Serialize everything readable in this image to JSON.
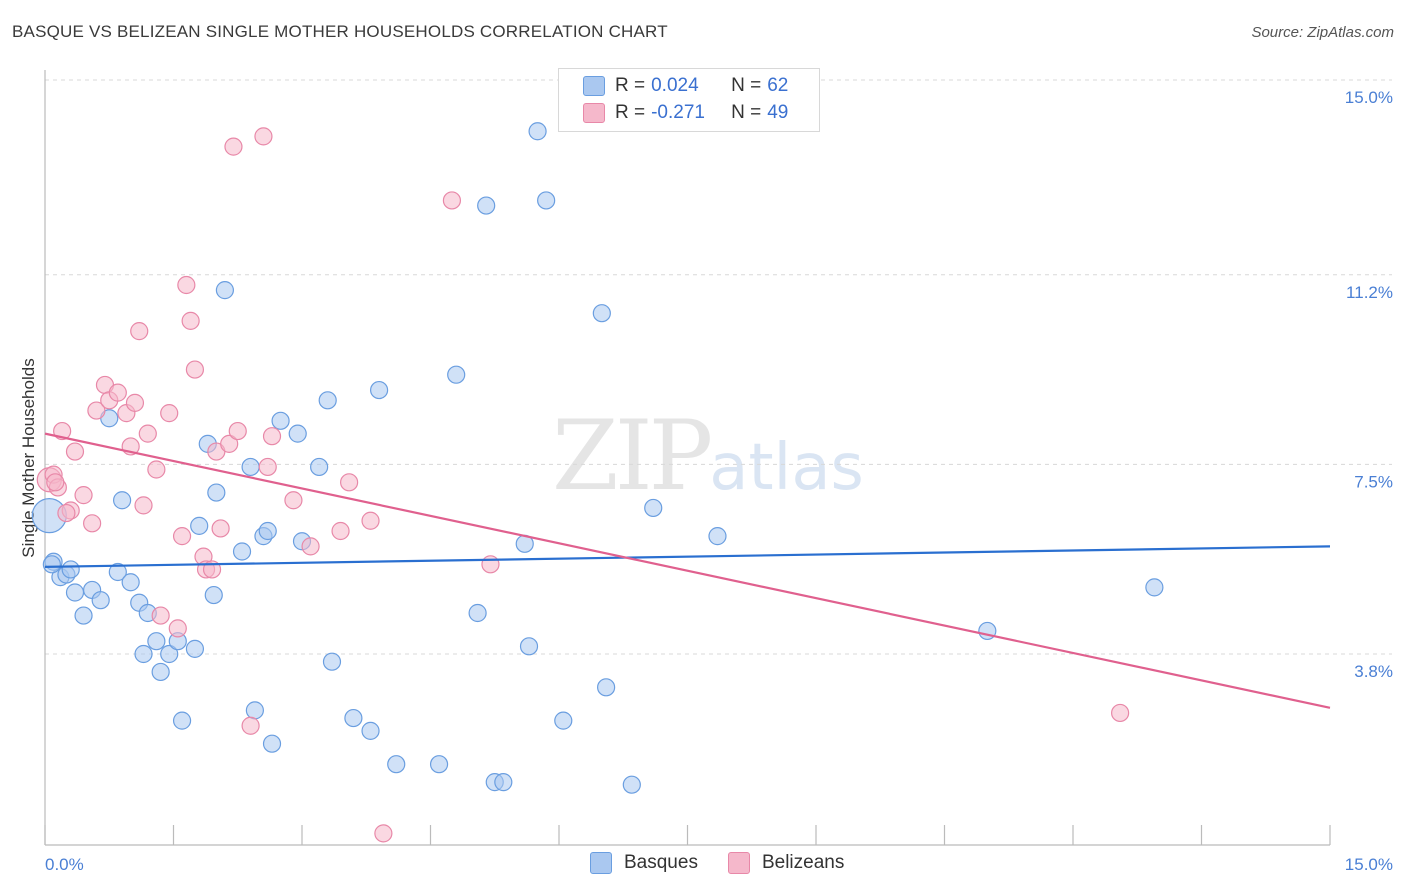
{
  "title": "BASQUE VS BELIZEAN SINGLE MOTHER HOUSEHOLDS CORRELATION CHART",
  "source": "Source: ZipAtlas.com",
  "watermark": {
    "zip": "ZIP",
    "atlas": "atlas"
  },
  "legend": {
    "rows": [
      {
        "r_label": "R =",
        "r_value": "0.024",
        "n_label": "N =",
        "n_value": "62"
      },
      {
        "r_label": "R =",
        "r_value": "-0.271",
        "n_label": "N =",
        "n_value": "49"
      }
    ]
  },
  "bottom_legend": {
    "series1": "Basques",
    "series2": "Belizeans"
  },
  "colors": {
    "basques_fill": "#aac8f0",
    "basques_stroke": "#6a9ee0",
    "basques_line": "#2a6fd0",
    "belizeans_fill": "#f5b8cb",
    "belizeans_stroke": "#e888a8",
    "belizeans_line": "#e0608e",
    "tick_text": "#4a7fd4",
    "grid": "#d8d8d8"
  },
  "chart_data": {
    "type": "scatter",
    "title": "BASQUE VS BELIZEAN SINGLE MOTHER HOUSEHOLDS CORRELATION CHART",
    "xlabel": "",
    "ylabel": "Single Mother Households",
    "xlim": [
      0,
      15
    ],
    "ylim": [
      0,
      15.5
    ],
    "x_tick_labels": [
      "0.0%",
      "15.0%"
    ],
    "y_ticks": [
      3.8,
      7.5,
      11.2,
      15.0
    ],
    "y_tick_labels": [
      "3.8%",
      "7.5%",
      "11.2%",
      "15.0%"
    ],
    "grid": true,
    "legend_position": "top-center",
    "series": [
      {
        "name": "Basques",
        "r": 0.024,
        "n": 62,
        "trend": [
          [
            0,
            5.5
          ],
          [
            15,
            5.9
          ]
        ],
        "points": [
          [
            0.05,
            6.5
          ],
          [
            0.1,
            5.6
          ],
          [
            0.18,
            5.3
          ],
          [
            0.25,
            5.35
          ],
          [
            0.35,
            5.0
          ],
          [
            0.45,
            4.55
          ],
          [
            0.55,
            5.05
          ],
          [
            0.65,
            4.85
          ],
          [
            0.75,
            8.4
          ],
          [
            0.85,
            5.4
          ],
          [
            0.9,
            6.8
          ],
          [
            1.0,
            5.2
          ],
          [
            1.1,
            4.8
          ],
          [
            1.15,
            3.8
          ],
          [
            1.2,
            4.6
          ],
          [
            1.3,
            4.05
          ],
          [
            1.35,
            3.45
          ],
          [
            1.45,
            3.8
          ],
          [
            1.55,
            4.05
          ],
          [
            1.6,
            2.5
          ],
          [
            1.75,
            3.9
          ],
          [
            1.8,
            6.3
          ],
          [
            1.9,
            7.9
          ],
          [
            1.97,
            4.95
          ],
          [
            2.0,
            6.95
          ],
          [
            2.1,
            10.9
          ],
          [
            2.3,
            5.8
          ],
          [
            2.4,
            7.45
          ],
          [
            2.45,
            2.7
          ],
          [
            2.55,
            6.1
          ],
          [
            2.6,
            6.2
          ],
          [
            2.65,
            2.05
          ],
          [
            2.75,
            8.35
          ],
          [
            2.95,
            8.1
          ],
          [
            3.0,
            6.0
          ],
          [
            3.2,
            7.45
          ],
          [
            3.3,
            8.75
          ],
          [
            3.35,
            3.65
          ],
          [
            3.6,
            2.55
          ],
          [
            3.8,
            2.3
          ],
          [
            3.9,
            8.95
          ],
          [
            4.1,
            1.65
          ],
          [
            4.6,
            1.65
          ],
          [
            4.8,
            9.25
          ],
          [
            5.05,
            4.6
          ],
          [
            5.15,
            12.55
          ],
          [
            5.25,
            1.3
          ],
          [
            5.35,
            1.3
          ],
          [
            5.6,
            5.95
          ],
          [
            5.65,
            3.95
          ],
          [
            5.75,
            14.0
          ],
          [
            5.85,
            12.65
          ],
          [
            6.05,
            2.5
          ],
          [
            6.5,
            10.45
          ],
          [
            6.55,
            3.15
          ],
          [
            6.85,
            1.25
          ],
          [
            7.1,
            6.65
          ],
          [
            7.85,
            6.1
          ],
          [
            11.0,
            4.25
          ],
          [
            12.95,
            5.1
          ],
          [
            0.08,
            5.55
          ],
          [
            0.3,
            5.45
          ]
        ]
      },
      {
        "name": "Belizeans",
        "r": -0.271,
        "n": 49,
        "trend": [
          [
            0,
            8.1
          ],
          [
            15,
            2.75
          ]
        ],
        "points": [
          [
            0.05,
            7.2
          ],
          [
            0.1,
            7.3
          ],
          [
            0.15,
            7.05
          ],
          [
            0.2,
            8.15
          ],
          [
            0.3,
            6.6
          ],
          [
            0.35,
            7.75
          ],
          [
            0.45,
            6.9
          ],
          [
            0.55,
            6.35
          ],
          [
            0.6,
            8.55
          ],
          [
            0.7,
            9.05
          ],
          [
            0.75,
            8.75
          ],
          [
            0.85,
            8.9
          ],
          [
            0.95,
            8.5
          ],
          [
            1.0,
            7.85
          ],
          [
            1.05,
            8.7
          ],
          [
            1.1,
            10.1
          ],
          [
            1.15,
            6.7
          ],
          [
            1.2,
            8.1
          ],
          [
            1.3,
            7.4
          ],
          [
            1.35,
            4.55
          ],
          [
            1.45,
            8.5
          ],
          [
            1.55,
            4.3
          ],
          [
            1.6,
            6.1
          ],
          [
            1.65,
            11.0
          ],
          [
            1.7,
            10.3
          ],
          [
            1.75,
            9.35
          ],
          [
            1.85,
            5.7
          ],
          [
            1.88,
            5.45
          ],
          [
            1.95,
            5.45
          ],
          [
            2.0,
            7.75
          ],
          [
            2.05,
            6.25
          ],
          [
            2.15,
            7.9
          ],
          [
            2.2,
            13.7
          ],
          [
            2.25,
            8.15
          ],
          [
            2.4,
            2.4
          ],
          [
            2.55,
            13.9
          ],
          [
            2.6,
            7.45
          ],
          [
            2.65,
            8.05
          ],
          [
            2.9,
            6.8
          ],
          [
            3.1,
            5.9
          ],
          [
            3.45,
            6.2
          ],
          [
            3.55,
            7.15
          ],
          [
            3.8,
            6.4
          ],
          [
            3.95,
            0.3
          ],
          [
            4.75,
            12.65
          ],
          [
            5.2,
            5.55
          ],
          [
            12.55,
            2.65
          ],
          [
            0.25,
            6.55
          ],
          [
            0.12,
            7.15
          ]
        ]
      }
    ]
  }
}
